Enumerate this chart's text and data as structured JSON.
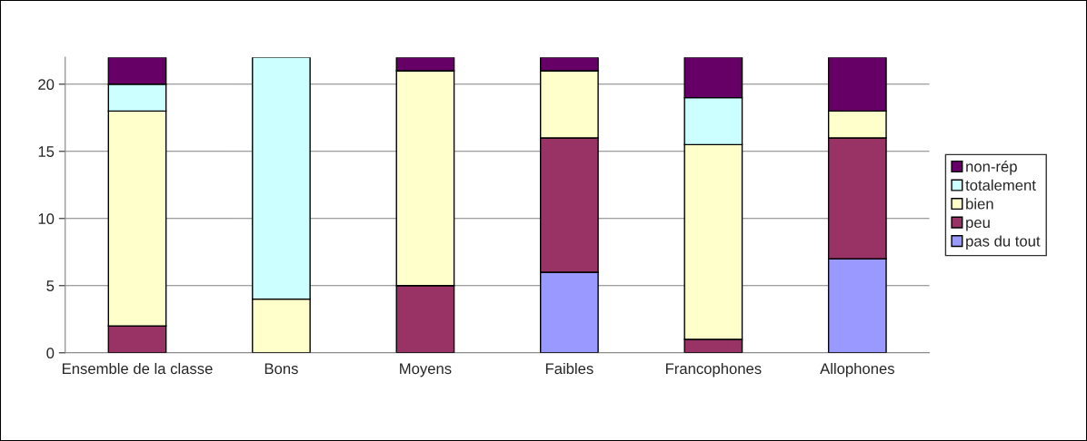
{
  "chart_data": {
    "type": "bar",
    "stacked": true,
    "categories": [
      "Ensemble de la classe",
      "Bons",
      "Moyens",
      "Faibles",
      "Francophones",
      "Allophones"
    ],
    "series": [
      {
        "name": "pas du tout",
        "color": "#9999ff",
        "values": [
          null,
          null,
          null,
          6,
          null,
          7
        ]
      },
      {
        "name": "peu",
        "color": "#993366",
        "values": [
          2,
          null,
          5,
          10,
          1,
          9
        ]
      },
      {
        "name": "bien",
        "color": "#ffffcc",
        "values": [
          16,
          4,
          16,
          5,
          14.5,
          2
        ]
      },
      {
        "name": "totalement",
        "color": "#ccffff",
        "values": [
          2,
          18,
          null,
          null,
          3.5,
          null
        ]
      },
      {
        "name": "non-rép",
        "color": "#660066",
        "values": [
          2,
          null,
          1,
          1,
          3,
          4
        ]
      }
    ],
    "ylim": [
      0,
      22
    ],
    "yticks": [
      0,
      5,
      10,
      15,
      20
    ],
    "grid": "y",
    "legend": "right"
  }
}
